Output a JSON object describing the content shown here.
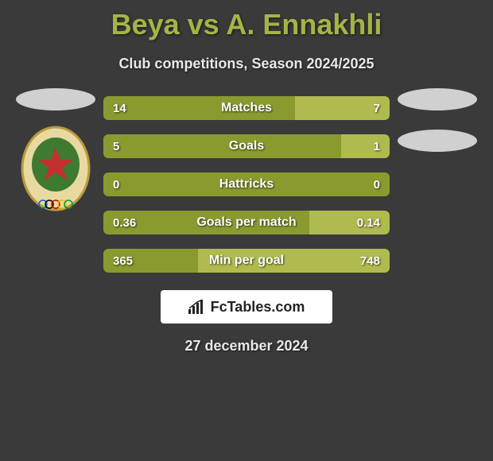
{
  "header": {
    "title": "Beya vs A. Ennakhli",
    "subtitle": "Club competitions, Season 2024/2025"
  },
  "colors": {
    "accent": "#a6b347",
    "bar_left": "#8b9a2f",
    "bar_right": "#b0bb4f",
    "bar_bg": "#2a2a2a",
    "oval": "#d0d0d0"
  },
  "stats": [
    {
      "label": "Matches",
      "left_val": "14",
      "right_val": "7",
      "left_pct": 67,
      "right_pct": 33
    },
    {
      "label": "Goals",
      "left_val": "5",
      "right_val": "1",
      "left_pct": 83,
      "right_pct": 17
    },
    {
      "label": "Hattricks",
      "left_val": "0",
      "right_val": "0",
      "left_pct": 100,
      "right_pct": 0
    },
    {
      "label": "Goals per match",
      "left_val": "0.36",
      "right_val": "0.14",
      "left_pct": 72,
      "right_pct": 28
    },
    {
      "label": "Min per goal",
      "left_val": "365",
      "right_val": "748",
      "left_pct": 33,
      "right_pct": 67
    }
  ],
  "brand": {
    "text": "FcTables.com"
  },
  "date": "27 december 2024",
  "badge": {
    "outer_fill": "#e8d9a0",
    "outer_stroke": "#b89a3f",
    "inner_fill": "#3e7a2f",
    "star_fill": "#c23030",
    "ring_colors": [
      "#0066cc",
      "#000000",
      "#cc0000",
      "#e6c200",
      "#009933"
    ]
  }
}
